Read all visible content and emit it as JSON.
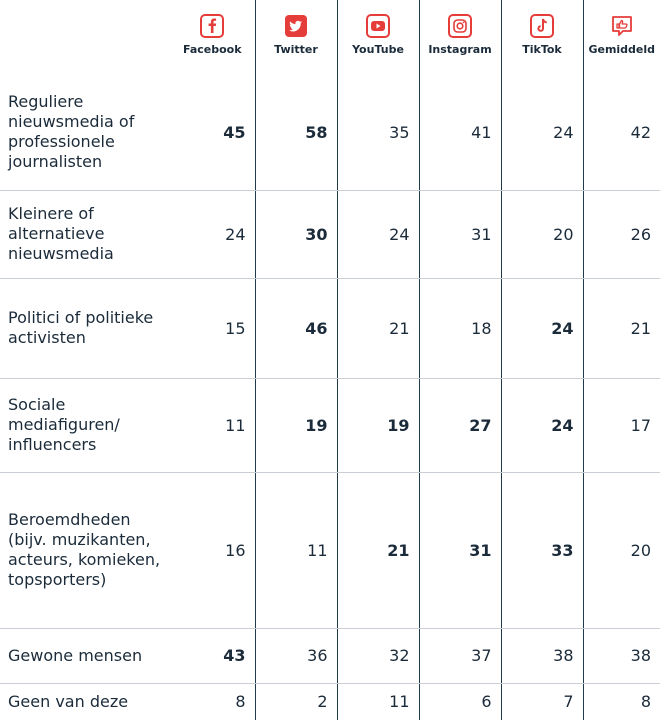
{
  "table": {
    "columns": [
      "Facebook",
      "Twitter",
      "YouTube",
      "Instagram",
      "TikTok",
      "Gemiddeld"
    ],
    "rows": [
      {
        "label": "Reguliere nieuwsmedia of professionele journalisten",
        "values": [
          45,
          58,
          35,
          41,
          24,
          42
        ],
        "bold": [
          0,
          1
        ]
      },
      {
        "label": "Kleinere of alternatieve nieuwsmedia",
        "values": [
          24,
          30,
          24,
          31,
          20,
          26
        ],
        "bold": [
          1
        ]
      },
      {
        "label": "Politici of politieke activisten",
        "values": [
          15,
          46,
          21,
          18,
          24,
          21
        ],
        "bold": [
          1,
          4
        ]
      },
      {
        "label": "Sociale mediafiguren/ influencers",
        "values": [
          11,
          19,
          19,
          27,
          24,
          17
        ],
        "bold": [
          1,
          2,
          3,
          4
        ]
      },
      {
        "label": "Beroemdheden (bijv. muzikanten, acteurs, komieken, topsporters)",
        "values": [
          16,
          11,
          21,
          31,
          33,
          20
        ],
        "bold": [
          2,
          3,
          4
        ]
      },
      {
        "label": "Gewone mensen",
        "values": [
          43,
          36,
          32,
          37,
          38,
          38
        ],
        "bold": [
          0
        ]
      },
      {
        "label": "Geen van deze",
        "values": [
          8,
          2,
          11,
          6,
          7,
          8
        ],
        "bold": []
      }
    ]
  }
}
